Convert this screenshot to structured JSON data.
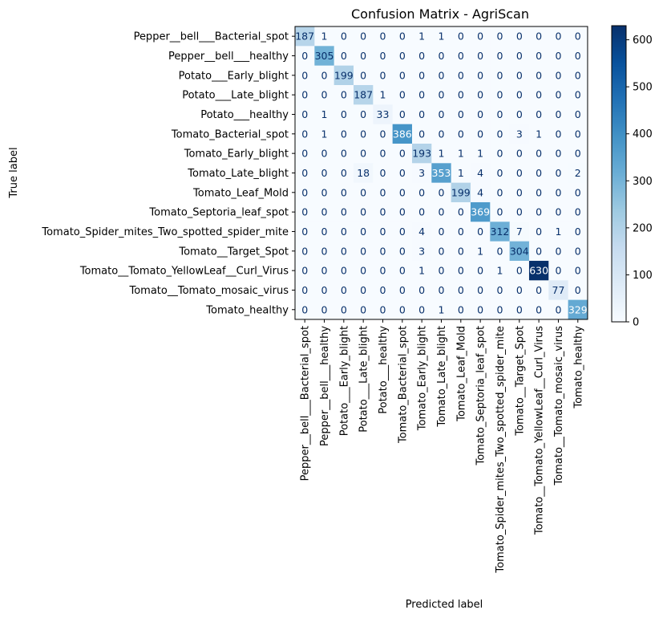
{
  "chart_data": {
    "type": "heatmap",
    "title": "Confusion Matrix - AgriScan",
    "xlabel": "Predicted label",
    "ylabel": "True label",
    "labels": [
      "Pepper__bell___Bacterial_spot",
      "Pepper__bell___healthy",
      "Potato___Early_blight",
      "Potato___Late_blight",
      "Potato___healthy",
      "Tomato_Bacterial_spot",
      "Tomato_Early_blight",
      "Tomato_Late_blight",
      "Tomato_Leaf_Mold",
      "Tomato_Septoria_leaf_spot",
      "Tomato_Spider_mites_Two_spotted_spider_mite",
      "Tomato__Target_Spot",
      "Tomato__Tomato_YellowLeaf__Curl_Virus",
      "Tomato__Tomato_mosaic_virus",
      "Tomato_healthy"
    ],
    "matrix": [
      [
        187,
        1,
        0,
        0,
        0,
        0,
        1,
        1,
        0,
        0,
        0,
        0,
        0,
        0,
        0
      ],
      [
        0,
        305,
        0,
        0,
        0,
        0,
        0,
        0,
        0,
        0,
        0,
        0,
        0,
        0,
        0
      ],
      [
        0,
        0,
        199,
        0,
        0,
        0,
        0,
        0,
        0,
        0,
        0,
        0,
        0,
        0,
        0
      ],
      [
        0,
        0,
        0,
        187,
        1,
        0,
        0,
        0,
        0,
        0,
        0,
        0,
        0,
        0,
        0
      ],
      [
        0,
        1,
        0,
        0,
        33,
        0,
        0,
        0,
        0,
        0,
        0,
        0,
        0,
        0,
        0
      ],
      [
        0,
        1,
        0,
        0,
        0,
        386,
        0,
        0,
        0,
        0,
        0,
        3,
        1,
        0,
        0
      ],
      [
        0,
        0,
        0,
        0,
        0,
        0,
        193,
        1,
        1,
        1,
        0,
        0,
        0,
        0,
        0
      ],
      [
        0,
        0,
        0,
        18,
        0,
        0,
        3,
        353,
        1,
        4,
        0,
        0,
        0,
        0,
        2
      ],
      [
        0,
        0,
        0,
        0,
        0,
        0,
        0,
        0,
        199,
        4,
        0,
        0,
        0,
        0,
        0
      ],
      [
        0,
        0,
        0,
        0,
        0,
        0,
        0,
        0,
        0,
        369,
        0,
        0,
        0,
        0,
        0
      ],
      [
        0,
        0,
        0,
        0,
        0,
        0,
        4,
        0,
        0,
        0,
        312,
        7,
        0,
        1,
        0
      ],
      [
        0,
        0,
        0,
        0,
        0,
        0,
        3,
        0,
        0,
        1,
        0,
        304,
        0,
        0,
        0
      ],
      [
        0,
        0,
        0,
        0,
        0,
        0,
        1,
        0,
        0,
        0,
        1,
        0,
        630,
        0,
        0
      ],
      [
        0,
        0,
        0,
        0,
        0,
        0,
        0,
        0,
        0,
        0,
        0,
        0,
        0,
        77,
        0
      ],
      [
        0,
        0,
        0,
        0,
        0,
        0,
        0,
        1,
        0,
        0,
        0,
        0,
        0,
        0,
        329
      ]
    ],
    "colormap": "Blues",
    "vmin": 0,
    "vmax": 630,
    "colorbar_ticks": [
      0,
      100,
      200,
      300,
      400,
      500,
      600
    ]
  }
}
